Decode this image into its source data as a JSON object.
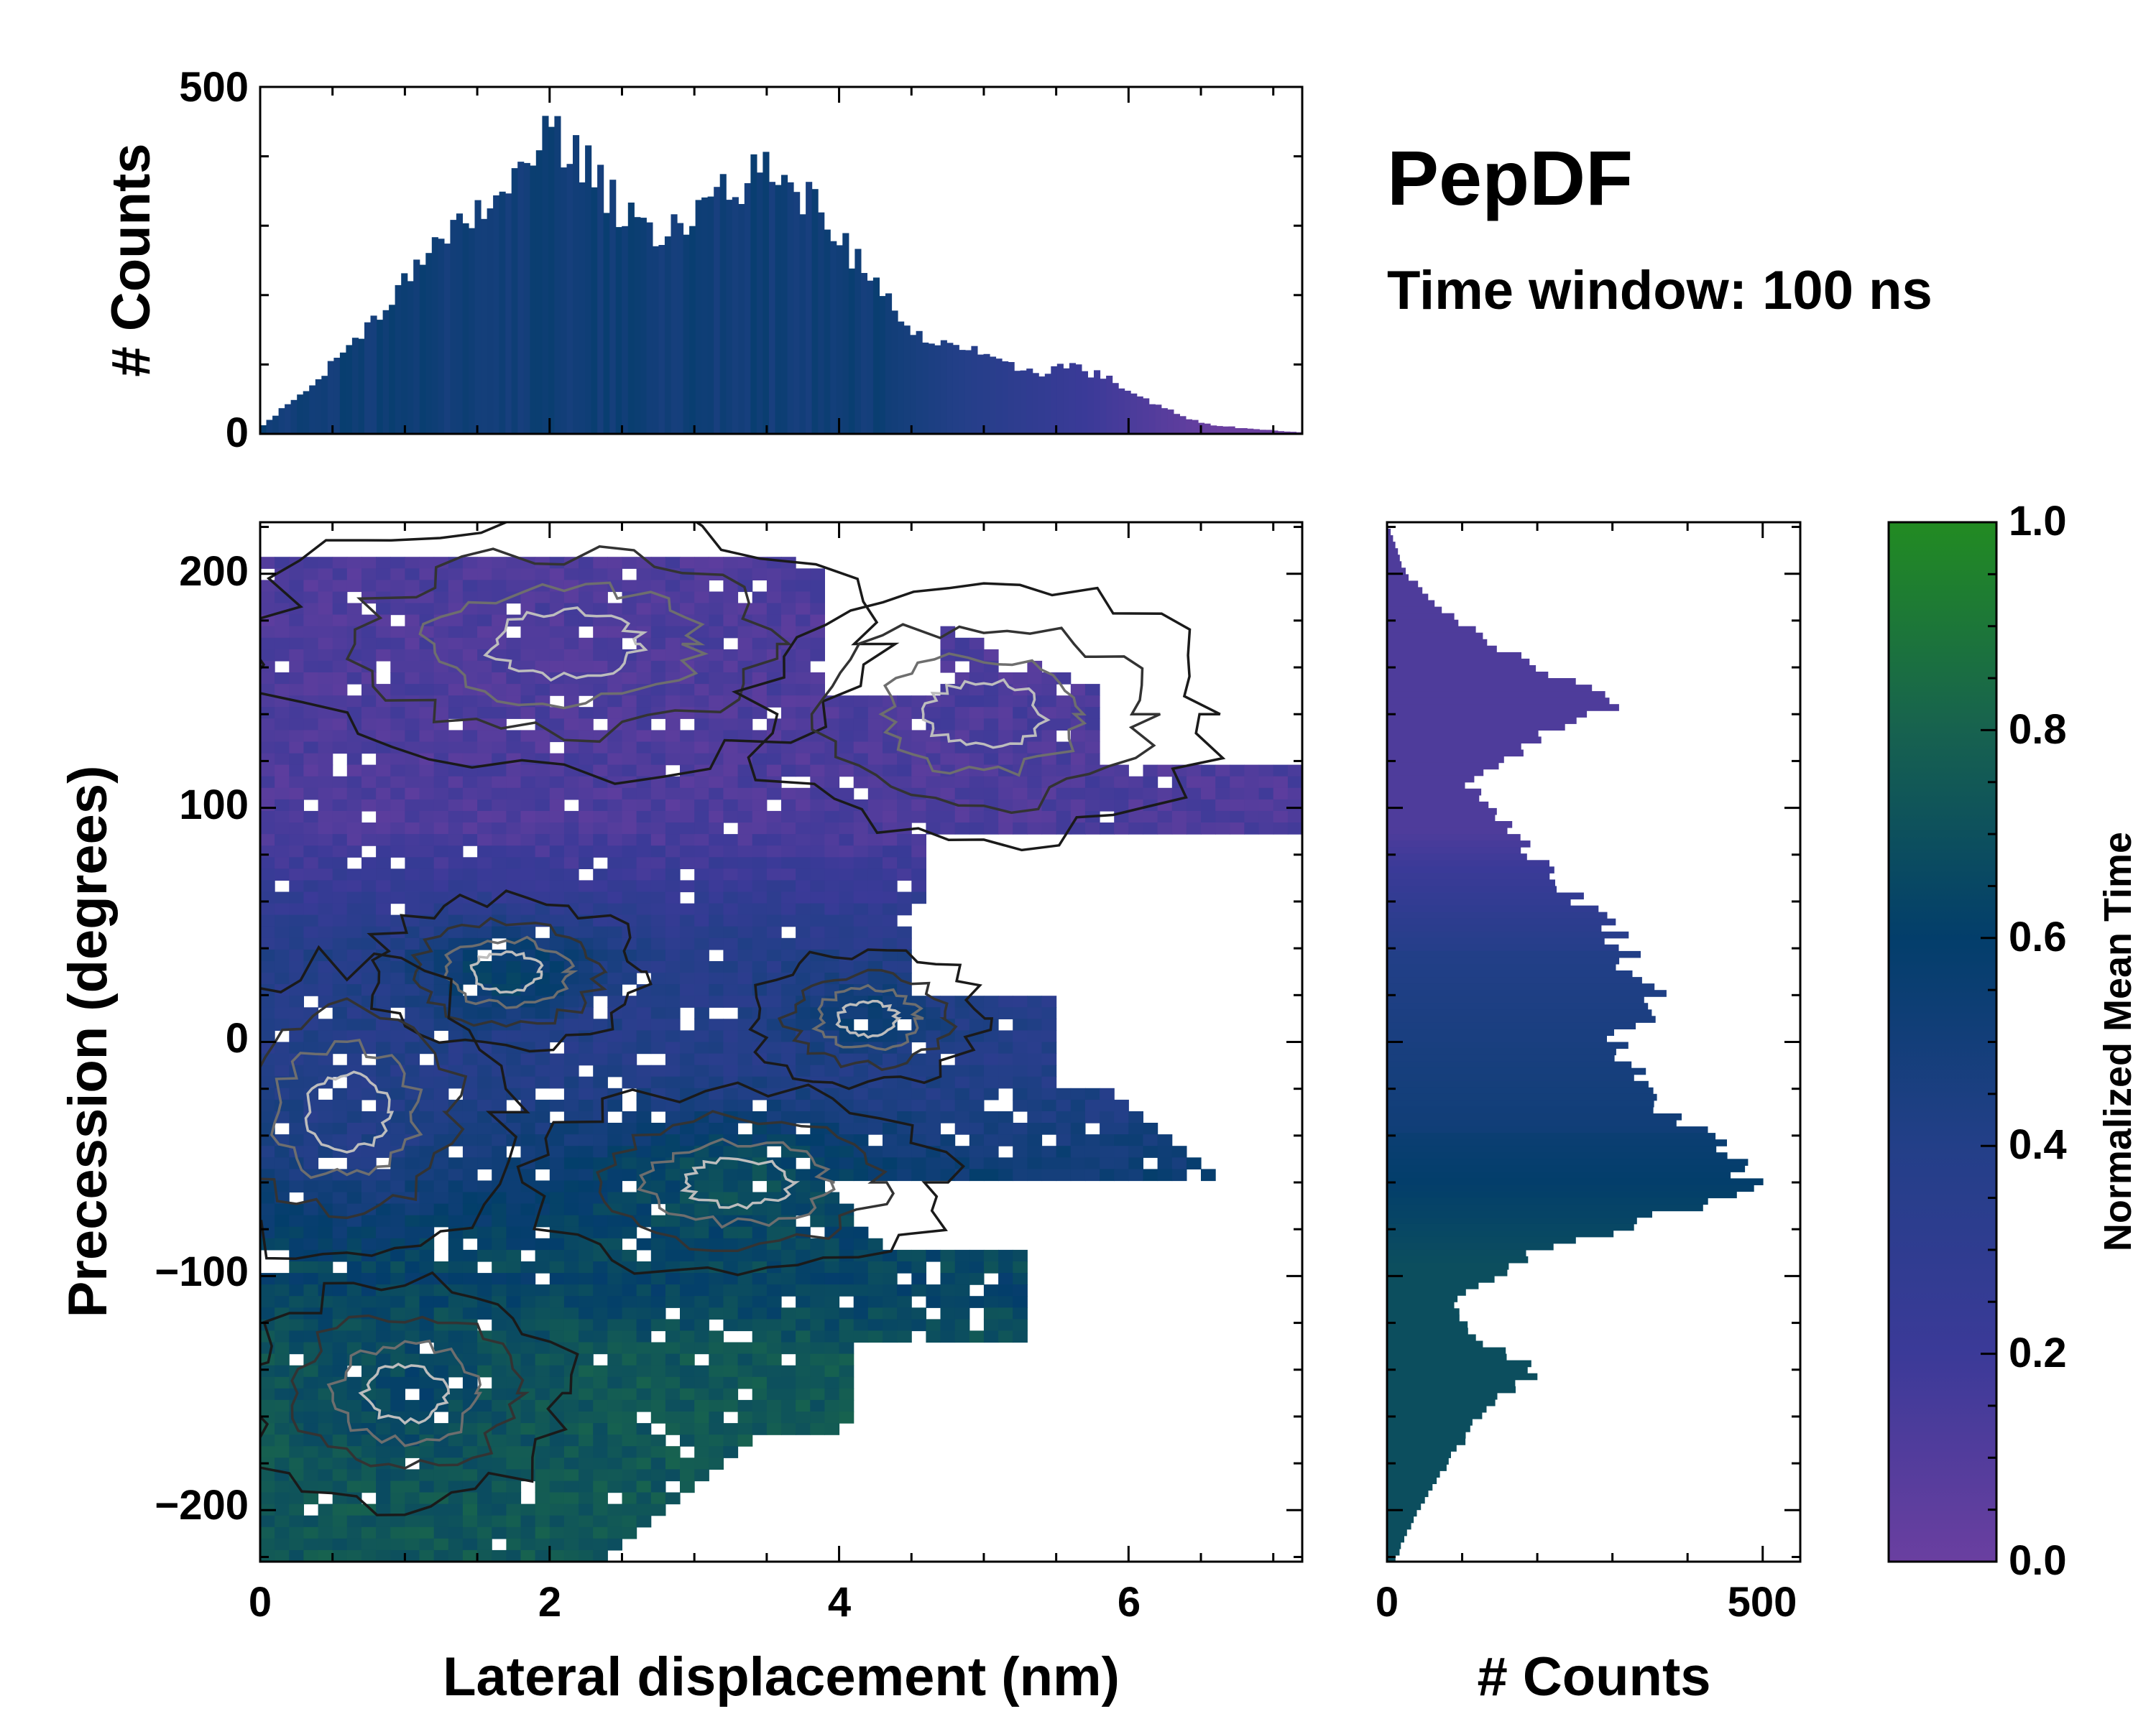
{
  "chart_data": {
    "type": "heatmap",
    "title": "PepDF",
    "subtitle": "Time window: 100 ns",
    "xlabel": "Lateral displacement (nm)",
    "ylabel": "Precession (degrees)",
    "xlim": [
      0,
      7.2
    ],
    "ylim": [
      -222,
      222
    ],
    "x_ticks": [
      "0",
      "2",
      "4",
      "6"
    ],
    "x_tick_values": [
      0,
      2,
      4,
      6
    ],
    "y_ticks": [
      "200",
      "100",
      "0",
      "−100",
      "−200"
    ],
    "y_tick_values": [
      200,
      100,
      0,
      -100,
      -200
    ],
    "top_histogram": {
      "ylabel": "# Counts",
      "ylim": [
        0,
        500
      ],
      "y_ticks": [
        "0",
        "500"
      ],
      "peaks": [
        {
          "x": 2.0,
          "counts": 440
        },
        {
          "x": 3.6,
          "counts": 380
        },
        {
          "x": 5.6,
          "counts": 100
        }
      ],
      "profile_x": [
        0,
        0.3,
        0.6,
        0.9,
        1.2,
        1.5,
        1.8,
        2.0,
        2.2,
        2.5,
        2.8,
        3.1,
        3.4,
        3.6,
        3.9,
        4.2,
        4.5,
        4.8,
        5.1,
        5.4,
        5.6,
        5.9,
        6.2,
        6.5,
        6.8,
        7.2
      ],
      "profile_counts": [
        10,
        60,
        120,
        200,
        260,
        320,
        370,
        440,
        400,
        320,
        290,
        340,
        370,
        380,
        310,
        230,
        140,
        130,
        100,
        90,
        100,
        75,
        40,
        15,
        8,
        2
      ]
    },
    "right_histogram": {
      "xlabel": "# Counts",
      "xlim": [
        0,
        550
      ],
      "x_ticks": [
        "0",
        "500"
      ],
      "peaks": [
        {
          "precession": 145,
          "counts": 320
        },
        {
          "precession": 15,
          "counts": 370
        },
        {
          "precession": -60,
          "counts": 490
        },
        {
          "precession": -140,
          "counts": 200
        }
      ],
      "profile_y": [
        222,
        200,
        180,
        160,
        145,
        130,
        110,
        90,
        70,
        50,
        30,
        15,
        0,
        -20,
        -40,
        -60,
        -75,
        -90,
        -110,
        -125,
        -140,
        -160,
        -180,
        -200,
        -222
      ],
      "profile_counts": [
        0,
        25,
        90,
        200,
        320,
        200,
        110,
        170,
        220,
        300,
        330,
        370,
        300,
        340,
        420,
        490,
        360,
        200,
        90,
        110,
        200,
        120,
        80,
        40,
        10
      ]
    },
    "colorbar": {
      "label": "Normalized Mean Time",
      "range": [
        0.0,
        1.0
      ],
      "ticks": [
        "0.0",
        "0.2",
        "0.4",
        "0.6",
        "0.8",
        "1.0"
      ],
      "tick_values": [
        0,
        0.2,
        0.4,
        0.6,
        0.8,
        1.0
      ],
      "colors": [
        "#6a3fa0",
        "#3b3a98",
        "#233f88",
        "#033e6b",
        "#17624f",
        "#228b22"
      ]
    },
    "clusters": [
      {
        "x": 2.1,
        "precession": 170,
        "spread_x": 1.3,
        "spread_y": 35,
        "time": 0.12
      },
      {
        "x": 5.0,
        "precession": 140,
        "spread_x": 1.0,
        "spread_y": 35,
        "time": 0.13
      },
      {
        "x": 1.7,
        "precession": 30,
        "spread_x": 0.6,
        "spread_y": 20,
        "time": 0.62
      },
      {
        "x": 3.3,
        "precession": -60,
        "spread_x": 0.9,
        "spread_y": 25,
        "time": 0.7
      },
      {
        "x": 4.2,
        "precession": 10,
        "spread_x": 0.5,
        "spread_y": 18,
        "time": 0.55
      },
      {
        "x": 1.0,
        "precession": -150,
        "spread_x": 0.7,
        "spread_y": 30,
        "time": 0.65
      },
      {
        "x": 0.6,
        "precession": -30,
        "spread_x": 0.7,
        "spread_y": 40,
        "time": 0.4
      }
    ]
  }
}
